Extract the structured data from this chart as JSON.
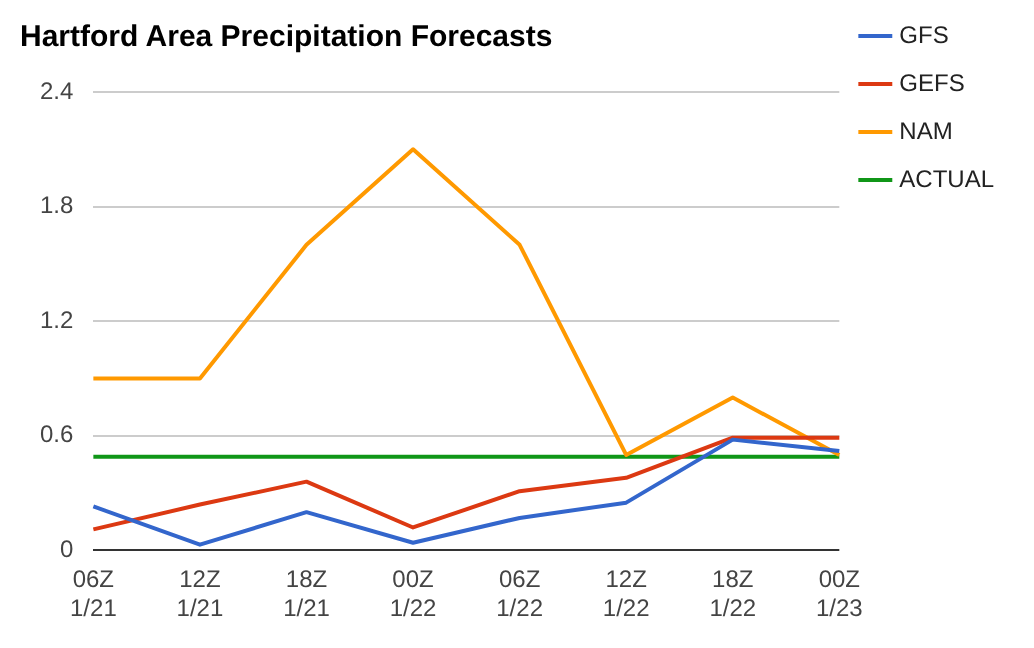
{
  "chart_data": {
    "type": "line",
    "title": "Hartford Area Precipitation Forecasts",
    "categories": [
      "06Z 1/21",
      "12Z 1/21",
      "18Z 1/21",
      "00Z 1/22",
      "06Z 1/22",
      "12Z 1/22",
      "18Z 1/22",
      "00Z 1/23"
    ],
    "series": [
      {
        "name": "GFS",
        "color": "#3366cc",
        "values": [
          0.23,
          0.03,
          0.2,
          0.04,
          0.17,
          0.25,
          0.58,
          0.52
        ]
      },
      {
        "name": "GEFS",
        "color": "#dc3912",
        "values": [
          0.11,
          0.24,
          0.36,
          0.12,
          0.31,
          0.38,
          0.59,
          0.59
        ]
      },
      {
        "name": "NAM",
        "color": "#ff9900",
        "values": [
          0.9,
          0.9,
          1.6,
          2.1,
          1.6,
          0.5,
          0.8,
          0.5
        ]
      },
      {
        "name": "ACTUAL",
        "color": "#109618",
        "values": [
          0.49,
          0.49,
          0.49,
          0.49,
          0.49,
          0.49,
          0.49,
          0.49
        ]
      }
    ],
    "ylim": [
      0,
      2.4
    ],
    "yticks": [
      0,
      0.6,
      1.2,
      1.8,
      2.4
    ],
    "grid": "y",
    "legend": "right",
    "marker": "none",
    "line_style": "solid"
  }
}
